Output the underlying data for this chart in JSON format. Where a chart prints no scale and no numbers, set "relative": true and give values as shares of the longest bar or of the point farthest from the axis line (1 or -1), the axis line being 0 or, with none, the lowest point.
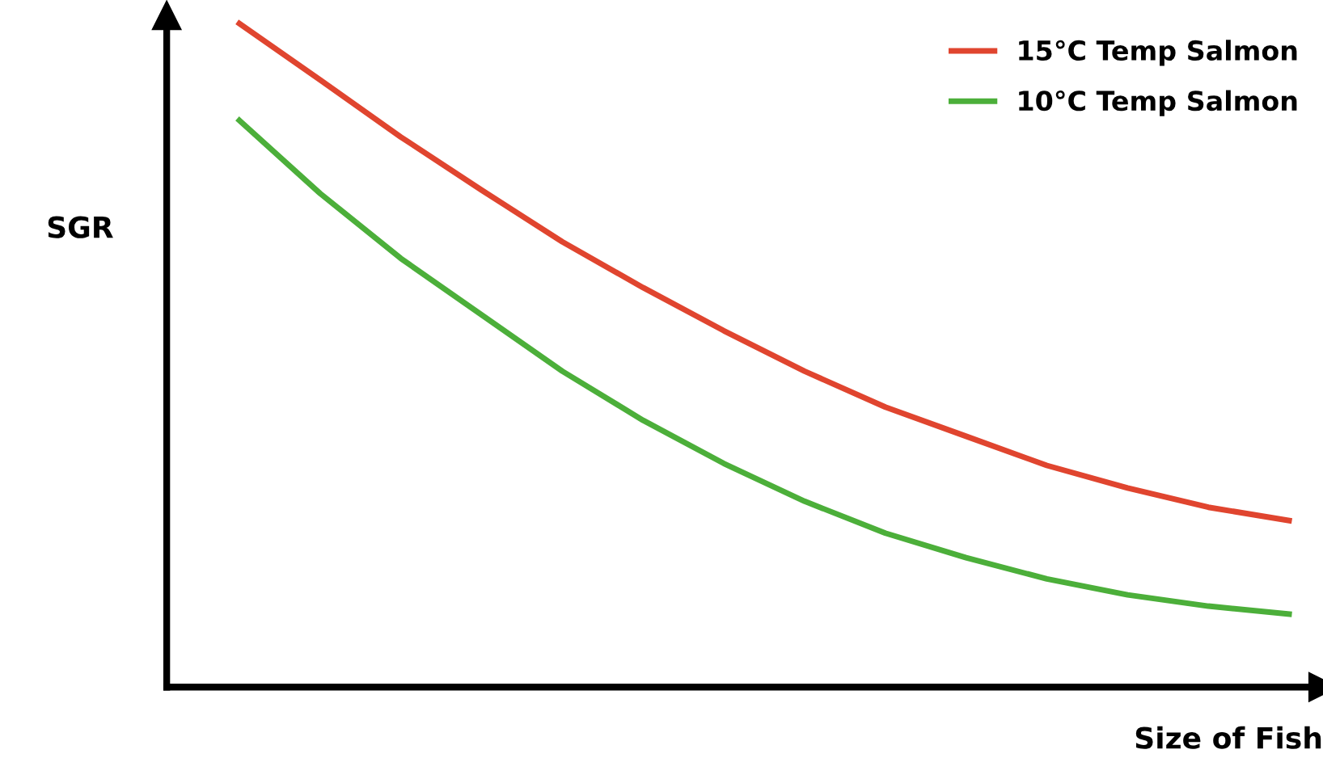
{
  "chart_data": {
    "type": "line",
    "relative": true,
    "xlabel": "Size of Fish",
    "ylabel": "SGR",
    "legend": "top right",
    "grid": false,
    "marker": "none",
    "line_style": "solid",
    "categories": [
      null,
      null,
      null,
      null,
      null,
      null,
      null,
      null,
      null,
      null,
      null,
      null,
      null,
      null
    ],
    "series": [
      {
        "name": "15°C Temp Salmon",
        "color": "#e0452f",
        "values": [
          1.0,
          0.915,
          0.829,
          0.749,
          0.671,
          0.602,
          0.537,
          0.476,
          0.422,
          0.378,
          0.334,
          0.3,
          0.271,
          0.251
        ]
      },
      {
        "name": "10°C Temp Salmon",
        "color": "#4caf3a",
        "values": [
          0.854,
          0.744,
          0.646,
          0.561,
          0.476,
          0.402,
          0.337,
          0.28,
          0.232,
          0.195,
          0.163,
          0.139,
          0.122,
          0.11
        ]
      }
    ]
  }
}
